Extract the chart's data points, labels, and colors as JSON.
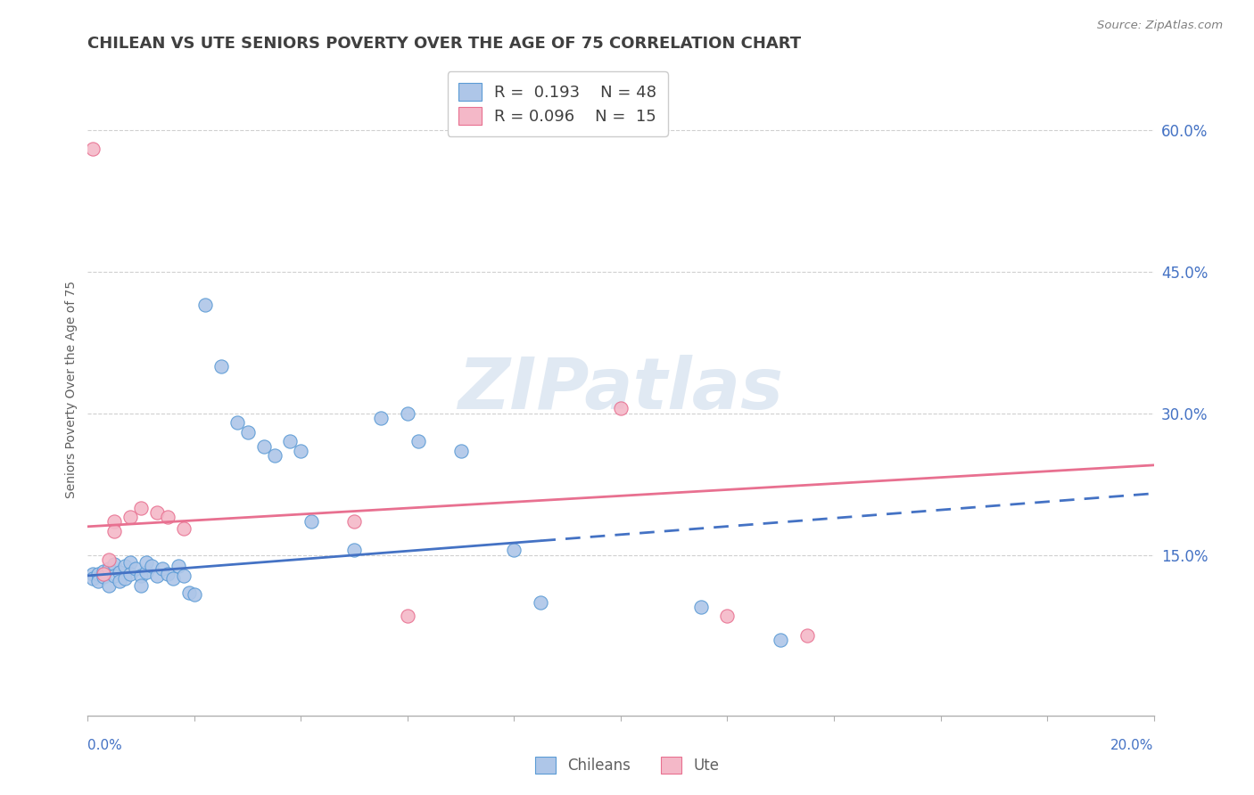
{
  "title": "CHILEAN VS UTE SENIORS POVERTY OVER THE AGE OF 75 CORRELATION CHART",
  "source": "Source: ZipAtlas.com",
  "ylabel": "Seniors Poverty Over the Age of 75",
  "ytick_values": [
    0.15,
    0.3,
    0.45,
    0.6
  ],
  "ytick_labels": [
    "15.0%",
    "30.0%",
    "45.0%",
    "60.0%"
  ],
  "xlim": [
    0.0,
    0.2
  ],
  "ylim": [
    -0.02,
    0.67
  ],
  "chilean_R": "0.193",
  "chilean_N": "48",
  "ute_R": "0.096",
  "ute_N": "15",
  "chilean_color": "#aec6e8",
  "ute_color": "#f4b8c8",
  "chilean_edge_color": "#5b9bd5",
  "ute_edge_color": "#e87090",
  "chilean_line_color": "#4472C4",
  "ute_line_color": "#e87090",
  "watermark_color": "#d0dce8",
  "grid_color": "#d0d0d0",
  "axis_color": "#b0b0b0",
  "title_color": "#404040",
  "ylabel_color": "#606060",
  "tick_label_color": "#4472C4",
  "source_color": "#808080",
  "legend_label_color": "#404040",
  "bottom_legend_color": "#606060",
  "chilean_points": [
    [
      0.001,
      0.13
    ],
    [
      0.001,
      0.125
    ],
    [
      0.002,
      0.13
    ],
    [
      0.002,
      0.122
    ],
    [
      0.003,
      0.133
    ],
    [
      0.003,
      0.127
    ],
    [
      0.004,
      0.135
    ],
    [
      0.004,
      0.118
    ],
    [
      0.005,
      0.14
    ],
    [
      0.005,
      0.128
    ],
    [
      0.006,
      0.132
    ],
    [
      0.006,
      0.122
    ],
    [
      0.007,
      0.138
    ],
    [
      0.007,
      0.125
    ],
    [
      0.008,
      0.142
    ],
    [
      0.008,
      0.13
    ],
    [
      0.009,
      0.135
    ],
    [
      0.01,
      0.128
    ],
    [
      0.01,
      0.118
    ],
    [
      0.011,
      0.132
    ],
    [
      0.011,
      0.142
    ],
    [
      0.012,
      0.138
    ],
    [
      0.013,
      0.128
    ],
    [
      0.014,
      0.135
    ],
    [
      0.015,
      0.13
    ],
    [
      0.016,
      0.125
    ],
    [
      0.017,
      0.138
    ],
    [
      0.018,
      0.128
    ],
    [
      0.019,
      0.11
    ],
    [
      0.02,
      0.108
    ],
    [
      0.022,
      0.415
    ],
    [
      0.025,
      0.35
    ],
    [
      0.028,
      0.29
    ],
    [
      0.03,
      0.28
    ],
    [
      0.033,
      0.265
    ],
    [
      0.035,
      0.255
    ],
    [
      0.038,
      0.27
    ],
    [
      0.04,
      0.26
    ],
    [
      0.042,
      0.185
    ],
    [
      0.05,
      0.155
    ],
    [
      0.055,
      0.295
    ],
    [
      0.06,
      0.3
    ],
    [
      0.062,
      0.27
    ],
    [
      0.07,
      0.26
    ],
    [
      0.08,
      0.155
    ],
    [
      0.085,
      0.1
    ],
    [
      0.115,
      0.095
    ],
    [
      0.13,
      0.06
    ]
  ],
  "ute_points": [
    [
      0.001,
      0.58
    ],
    [
      0.003,
      0.13
    ],
    [
      0.004,
      0.145
    ],
    [
      0.005,
      0.185
    ],
    [
      0.005,
      0.175
    ],
    [
      0.008,
      0.19
    ],
    [
      0.01,
      0.2
    ],
    [
      0.013,
      0.195
    ],
    [
      0.015,
      0.19
    ],
    [
      0.018,
      0.178
    ],
    [
      0.05,
      0.185
    ],
    [
      0.06,
      0.085
    ],
    [
      0.1,
      0.305
    ],
    [
      0.12,
      0.085
    ],
    [
      0.135,
      0.065
    ]
  ],
  "chilean_trend": [
    0.0,
    0.2
  ],
  "chilean_trend_y": [
    0.128,
    0.215
  ],
  "ute_trend": [
    0.0,
    0.2
  ],
  "ute_trend_y": [
    0.18,
    0.245
  ]
}
